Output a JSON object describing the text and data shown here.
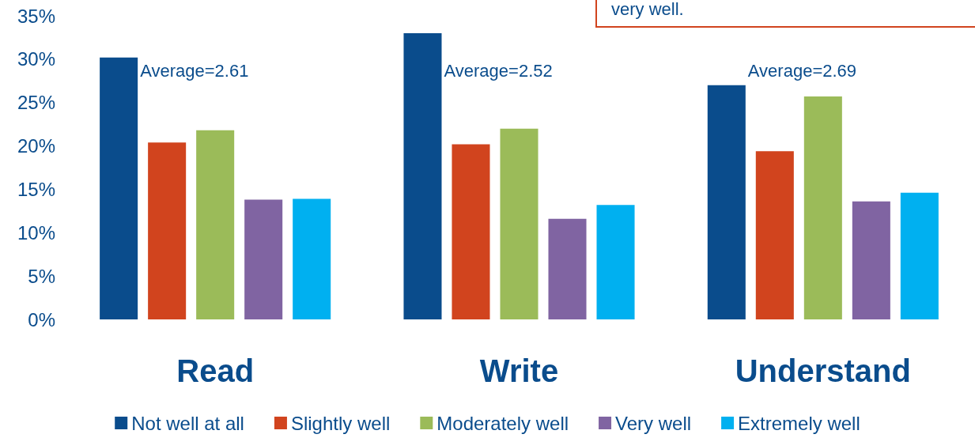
{
  "chart_data": {
    "type": "bar",
    "categories": [
      "Read",
      "Write",
      "Understand"
    ],
    "series": [
      {
        "name": "Not well at all",
        "color": "#0a4c8c",
        "values": [
          30.2,
          33.0,
          27.0
        ]
      },
      {
        "name": "Slightly well",
        "color": "#d1441e",
        "values": [
          20.4,
          20.2,
          19.4
        ]
      },
      {
        "name": "Moderately well",
        "color": "#9bbb59",
        "values": [
          21.8,
          22.0,
          25.7
        ]
      },
      {
        "name": "Very well",
        "color": "#8064a2",
        "values": [
          13.8,
          11.6,
          13.6
        ]
      },
      {
        "name": "Extremely well",
        "color": "#00b0f0",
        "values": [
          13.9,
          13.2,
          14.6
        ]
      }
    ],
    "ylim": [
      0,
      35
    ],
    "yticks": [
      {
        "value": 0,
        "label": "0%"
      },
      {
        "value": 5,
        "label": "5%"
      },
      {
        "value": 10,
        "label": "10%"
      },
      {
        "value": 15,
        "label": "15%"
      },
      {
        "value": 20,
        "label": "20%"
      },
      {
        "value": 25,
        "label": "25%"
      },
      {
        "value": 30,
        "label": "30%"
      },
      {
        "value": 35,
        "label": "35%"
      }
    ],
    "annotations": [
      "Average=2.61",
      "Average=2.52",
      "Average=2.69",
      "very well."
    ],
    "grid": false,
    "legend": "bottom"
  }
}
